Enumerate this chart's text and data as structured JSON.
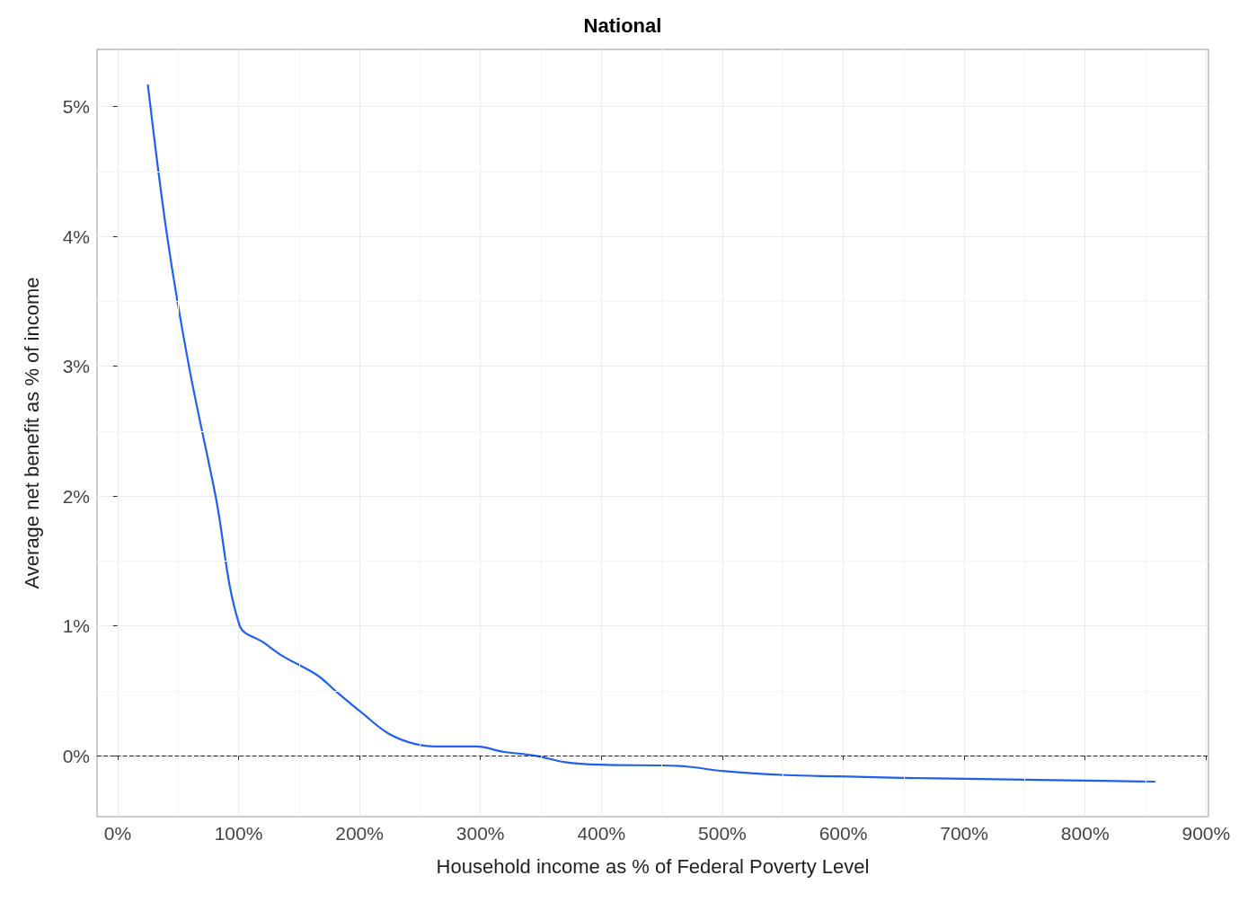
{
  "chart_data": {
    "type": "line",
    "title": "National",
    "xlabel": "Household income as % of Federal Poverty Level",
    "ylabel": "Average net benefit as % of income",
    "x": [
      25,
      41,
      59,
      81,
      101,
      121,
      136,
      165,
      180,
      202,
      224,
      246,
      268,
      297,
      319,
      345,
      370,
      399,
      465,
      502,
      553,
      597,
      641,
      714,
      787,
      858
    ],
    "series": [
      {
        "color": "#2060ee",
        "values": [
          5.17,
          4.0,
          3.0,
          2.0,
          1.0,
          0.87,
          0.77,
          0.62,
          0.5,
          0.33,
          0.17,
          0.09,
          0.07,
          0.07,
          0.03,
          0.0,
          -0.05,
          -0.07,
          -0.08,
          -0.12,
          -0.15,
          -0.16,
          -0.17,
          -0.18,
          -0.19,
          -0.2
        ]
      }
    ],
    "xlim": [
      -17,
      902
    ],
    "ylim": [
      -0.47,
      5.44
    ],
    "xticks": [
      {
        "value": 0,
        "label": "0%"
      },
      {
        "value": 100,
        "label": "100%"
      },
      {
        "value": 200,
        "label": "200%"
      },
      {
        "value": 300,
        "label": "300%"
      },
      {
        "value": 400,
        "label": "400%"
      },
      {
        "value": 500,
        "label": "500%"
      },
      {
        "value": 600,
        "label": "600%"
      },
      {
        "value": 700,
        "label": "700%"
      },
      {
        "value": 800,
        "label": "800%"
      },
      {
        "value": 900,
        "label": "900%"
      }
    ],
    "yticks": [
      {
        "value": 0,
        "label": "0%"
      },
      {
        "value": 1,
        "label": "1%"
      },
      {
        "value": 2,
        "label": "2%"
      },
      {
        "value": 3,
        "label": "3%"
      },
      {
        "value": 4,
        "label": "4%"
      },
      {
        "value": 5,
        "label": "5%"
      }
    ],
    "ref_lines": [
      {
        "axis": "y",
        "value": 0,
        "color": "#222222",
        "line_style": "dashed"
      }
    ],
    "grid": true,
    "marker": "none",
    "line_style": "solid"
  }
}
